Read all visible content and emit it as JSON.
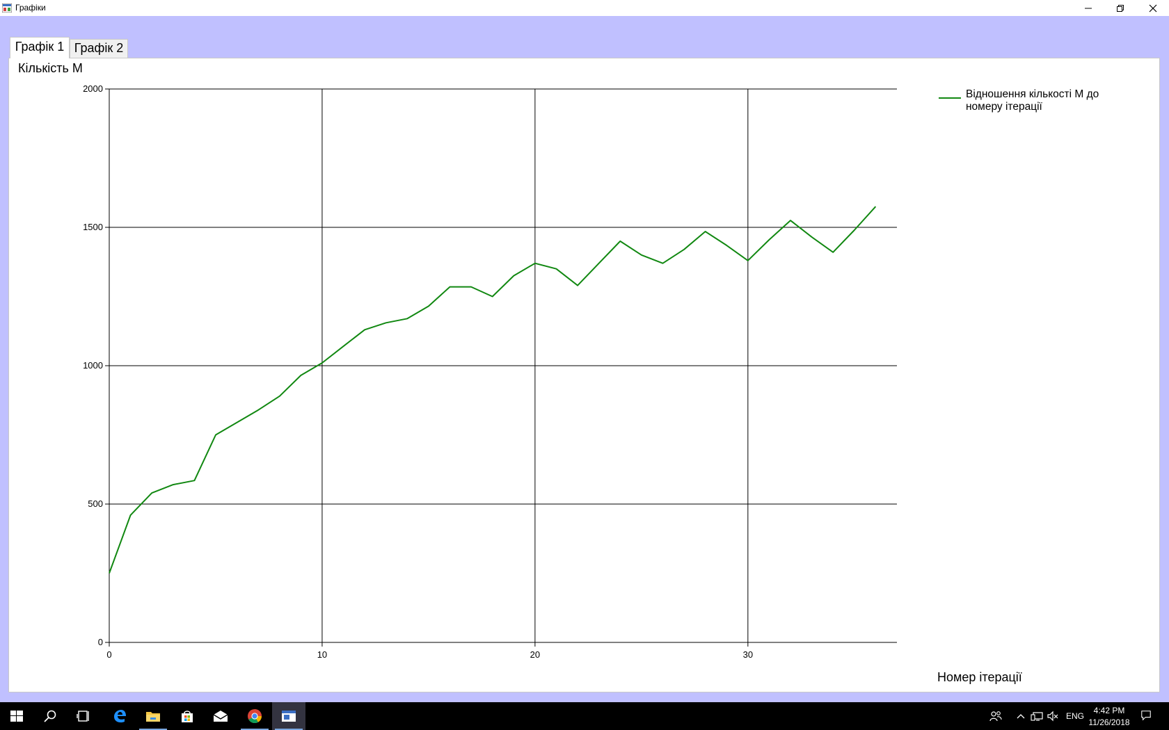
{
  "window": {
    "title": "Графіки"
  },
  "tabs": [
    {
      "label": "Графік 1",
      "selected": true
    },
    {
      "label": "Графік 2",
      "selected": false
    }
  ],
  "chart_data": {
    "type": "line",
    "ylabel": "Кількість M",
    "xlabel": "Номер ітерації",
    "xlim": [
      0,
      37
    ],
    "ylim": [
      0,
      2000
    ],
    "x_ticks": [
      0,
      10,
      20,
      30
    ],
    "y_ticks": [
      0,
      500,
      1000,
      1500,
      2000
    ],
    "grid": true,
    "legend_position": "top-right",
    "series": [
      {
        "name": "Відношення кількості M до номеру ітерації",
        "color": "#118811",
        "x": [
          0,
          1,
          2,
          3,
          4,
          5,
          6,
          7,
          8,
          9,
          10,
          11,
          12,
          13,
          14,
          15,
          16,
          17,
          18,
          19,
          20,
          21,
          22,
          23,
          24,
          25,
          26,
          27,
          28,
          29,
          30,
          31,
          32,
          33,
          34,
          35,
          36
        ],
        "y": [
          250,
          460,
          540,
          570,
          585,
          750,
          795,
          840,
          890,
          965,
          1010,
          1070,
          1130,
          1155,
          1170,
          1215,
          1285,
          1285,
          1250,
          1325,
          1370,
          1350,
          1290,
          1370,
          1450,
          1400,
          1370,
          1420,
          1485,
          1435,
          1380,
          1455,
          1525,
          1465,
          1410,
          1490,
          1575
        ]
      }
    ]
  },
  "taskbar": {
    "language": "ENG",
    "time": "4:42 PM",
    "date": "11/26/2018",
    "icons": [
      "windows-start-icon",
      "search-icon",
      "task-view-icon",
      "edge-icon",
      "file-explorer-icon",
      "store-icon",
      "mail-icon",
      "chrome-icon",
      "app-window-icon"
    ]
  }
}
